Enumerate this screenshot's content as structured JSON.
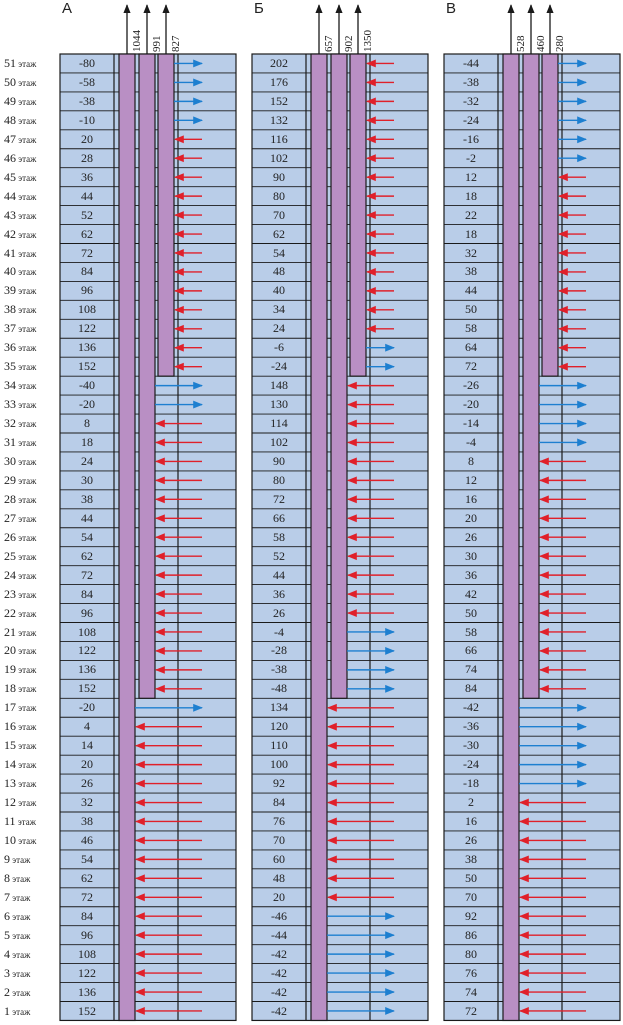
{
  "floors": {
    "labels": [
      "51",
      "50",
      "49",
      "48",
      "47",
      "46",
      "45",
      "44",
      "43",
      "42",
      "41",
      "40",
      "39",
      "38",
      "37",
      "36",
      "35",
      "34",
      "33",
      "32",
      "31",
      "30",
      "29",
      "28",
      "27",
      "26",
      "25",
      "24",
      "23",
      "22",
      "21",
      "20",
      "19",
      "18",
      "17",
      "16",
      "15",
      "14",
      "13",
      "12",
      "11",
      "10",
      "9",
      "8",
      "7",
      "6",
      "5",
      "4",
      "3",
      "2",
      "1"
    ],
    "unit": "этаж"
  },
  "colors": {
    "cell": "#b9cde8",
    "grid": "#1a1a1a",
    "shaft": "#b98fc4",
    "in_arrow": "#e0202a",
    "out_arrow": "#1d7fd0"
  },
  "panels": [
    {
      "letter": "А",
      "shaft_totals": [
        "1044",
        "991",
        "827"
      ],
      "shaft_tops": [
        1,
        18,
        35
      ],
      "values": [
        -80,
        -58,
        -38,
        -10,
        20,
        28,
        36,
        44,
        52,
        62,
        72,
        84,
        96,
        108,
        122,
        136,
        152,
        -40,
        -20,
        8,
        18,
        24,
        30,
        38,
        44,
        54,
        62,
        72,
        84,
        96,
        108,
        122,
        136,
        152,
        -20,
        4,
        14,
        20,
        26,
        32,
        38,
        46,
        54,
        62,
        72,
        84,
        96,
        108,
        122,
        136,
        152
      ]
    },
    {
      "letter": "Б",
      "shaft_totals": [
        "657",
        "902",
        "1350"
      ],
      "shaft_tops": [
        1,
        18,
        35
      ],
      "values": [
        202,
        176,
        152,
        132,
        116,
        102,
        90,
        80,
        70,
        62,
        54,
        48,
        40,
        34,
        24,
        -6,
        -24,
        148,
        130,
        114,
        102,
        90,
        80,
        72,
        66,
        58,
        52,
        44,
        36,
        26,
        -4,
        -28,
        -38,
        -48,
        134,
        120,
        110,
        100,
        92,
        84,
        76,
        70,
        60,
        48,
        20,
        -46,
        -44,
        -42,
        -42,
        -42,
        -42
      ]
    },
    {
      "letter": "В",
      "shaft_totals": [
        "528",
        "460",
        "280"
      ],
      "shaft_tops": [
        1,
        18,
        35
      ],
      "values": [
        -44,
        -38,
        -32,
        -24,
        -16,
        -2,
        12,
        18,
        22,
        18,
        32,
        38,
        44,
        50,
        58,
        64,
        72,
        -26,
        -20,
        -14,
        -4,
        8,
        12,
        16,
        20,
        26,
        30,
        36,
        42,
        50,
        58,
        66,
        74,
        84,
        -42,
        -36,
        -30,
        -24,
        -18,
        2,
        16,
        26,
        38,
        50,
        70,
        92,
        86,
        80,
        76,
        74,
        72
      ]
    }
  ]
}
